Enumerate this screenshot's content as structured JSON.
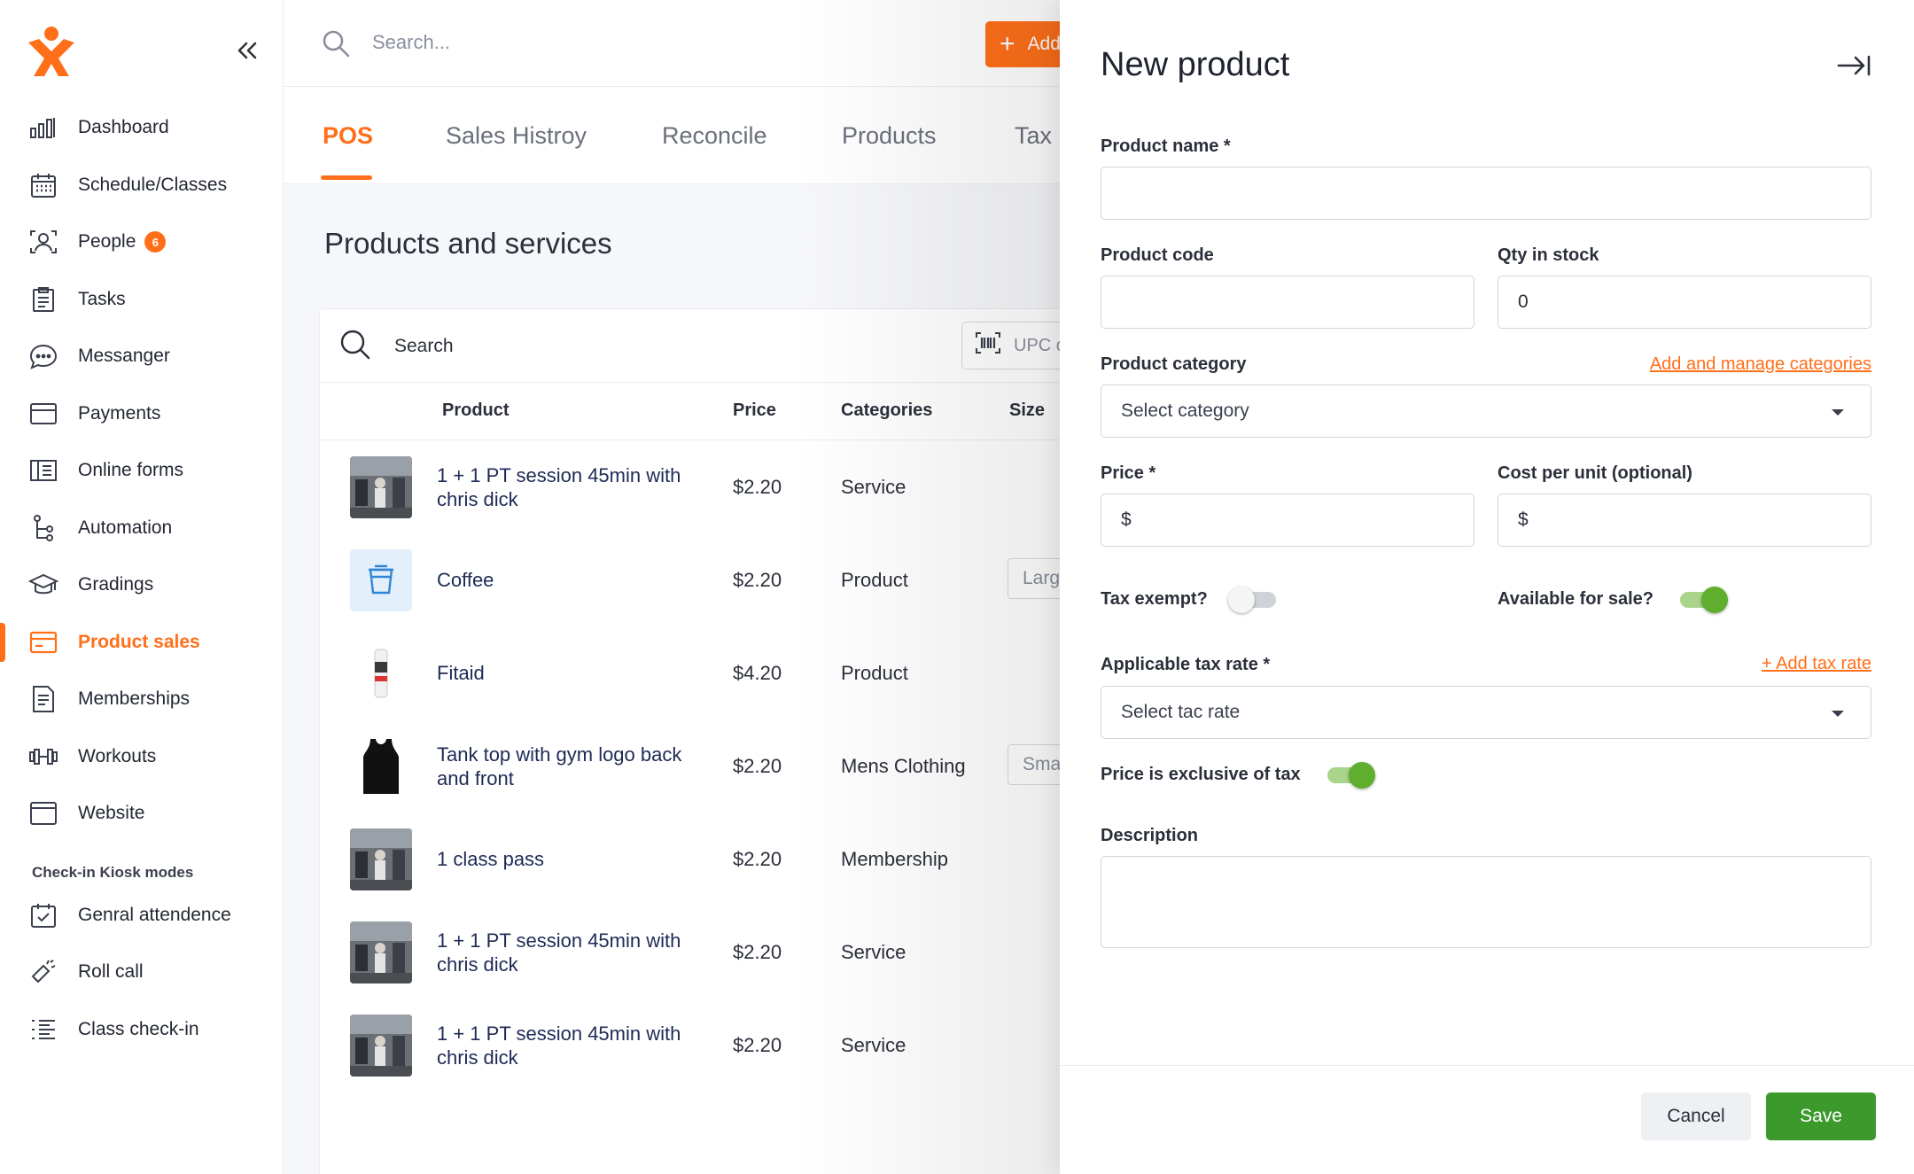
{
  "colors": {
    "accent": "#ff6f1a",
    "success": "#3c9a2c",
    "toggle_on": "#5fae2e"
  },
  "sidebar": {
    "logo_icon": "gym-person-logo-icon",
    "collapse_icon": "double-chevron-left-icon",
    "items": [
      {
        "label": "Dashboard",
        "icon": "bar-chart-icon"
      },
      {
        "label": "Schedule/Classes",
        "icon": "calendar-icon"
      },
      {
        "label": "People",
        "icon": "person-scan-icon",
        "badge": "6"
      },
      {
        "label": "Tasks",
        "icon": "clipboard-icon"
      },
      {
        "label": "Messanger",
        "icon": "chat-bubble-icon"
      },
      {
        "label": "Payments",
        "icon": "card-icon"
      },
      {
        "label": "Online forms",
        "icon": "forms-icon"
      },
      {
        "label": "Automation",
        "icon": "flow-icon"
      },
      {
        "label": "Gradings",
        "icon": "graduation-cap-icon"
      },
      {
        "label": "Product sales",
        "icon": "card-icon",
        "active": true
      },
      {
        "label": "Memberships",
        "icon": "document-icon"
      },
      {
        "label": "Workouts",
        "icon": "dumbbell-icon"
      },
      {
        "label": "Website",
        "icon": "browser-icon"
      }
    ],
    "section_label": "Check-in Kiosk modes",
    "kiosk_items": [
      {
        "label": "Genral attendence",
        "icon": "calendar-check-icon"
      },
      {
        "label": "Roll call",
        "icon": "megaphone-icon"
      },
      {
        "label": "Class check-in",
        "icon": "list-icon"
      }
    ]
  },
  "topbar": {
    "search_placeholder": "Search...",
    "add_label": "Add"
  },
  "tabs": [
    "POS",
    "Sales Histroy",
    "Reconcile",
    "Products",
    "Tax"
  ],
  "main": {
    "title": "Products and services",
    "search_placeholder": "Search",
    "upc_placeholder": "UPC c",
    "columns": {
      "product": "Product",
      "price": "Price",
      "categories": "Categories",
      "size": "Size"
    },
    "rows": [
      {
        "name": "1 + 1 PT session 45min with chris dick",
        "price": "$2.20",
        "category": "Service",
        "size": "",
        "thumb": "gym-photo"
      },
      {
        "name": "Coffee",
        "price": "$2.20",
        "category": "Product",
        "size": "Larg",
        "thumb": "coffee-cup-icon"
      },
      {
        "name": "Fitaid",
        "price": "$4.20",
        "category": "Product",
        "size": "",
        "thumb": "can-drink"
      },
      {
        "name": "Tank top with gym logo back and front",
        "price": "$2.20",
        "category": "Mens Clothing",
        "size": "Sma",
        "thumb": "tank-top"
      },
      {
        "name": "1 class pass",
        "price": "$2.20",
        "category": "Membership",
        "size": "",
        "thumb": "gym-photo"
      },
      {
        "name": "1 + 1 PT session 45min with chris dick",
        "price": "$2.20",
        "category": "Service",
        "size": "",
        "thumb": "gym-photo"
      },
      {
        "name": "1 + 1 PT session 45min with chris dick",
        "price": "$2.20",
        "category": "Service",
        "size": "",
        "thumb": "gym-photo"
      }
    ]
  },
  "drawer": {
    "title": "New product",
    "close_icon": "collapse-right-icon",
    "product_name_label": "Product name *",
    "product_name_value": "",
    "product_code_label": "Product code",
    "product_code_value": "",
    "qty_label": "Qty in stock",
    "qty_value": "0",
    "category_label": "Product category",
    "category_link": "Add and manage categories",
    "category_placeholder": "Select category",
    "price_label": "Price *",
    "price_prefix": "$",
    "cost_label": "Cost per unit (optional)",
    "cost_prefix": "$",
    "tax_exempt_label": "Tax exempt?",
    "tax_exempt": false,
    "available_label": "Available for sale?",
    "available": true,
    "tax_rate_label": "Applicable tax rate *",
    "tax_rate_link": "+ Add tax rate",
    "tax_rate_placeholder": "Select tac rate",
    "exclusive_label": "Price is exclusive of tax",
    "exclusive": true,
    "description_label": "Description",
    "description_value": "",
    "cancel_label": "Cancel",
    "save_label": "Save"
  }
}
